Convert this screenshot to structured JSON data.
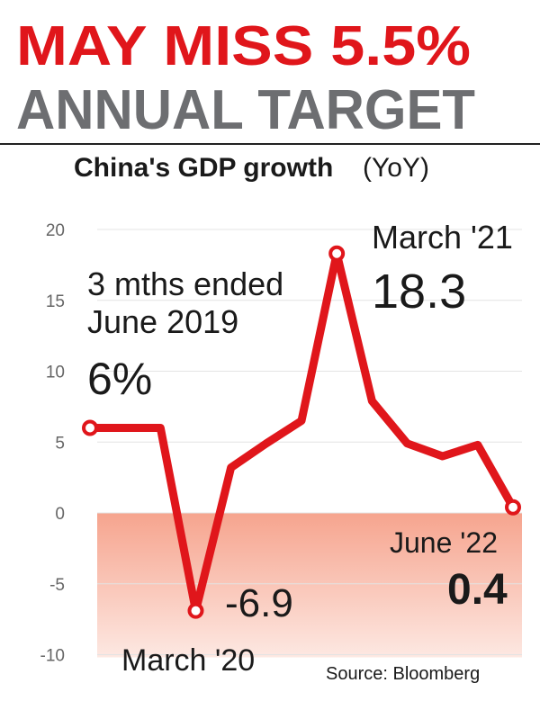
{
  "chart_data": {
    "type": "line",
    "title": [
      "MAY MISS 5.5%",
      "ANNUAL TARGET"
    ],
    "subtitle": "China's GDP growth",
    "subtitle_unit": "(YoY)",
    "source": "Source: Bloomberg",
    "categories": [
      "3 mths ended June 2019",
      null,
      null,
      "March '20",
      null,
      null,
      null,
      "March '21",
      null,
      null,
      null,
      null,
      "June '22"
    ],
    "series": [
      {
        "color": "#e0161b",
        "values": [
          6,
          6,
          6,
          -6.9,
          3.2,
          4.9,
          6.5,
          18.3,
          7.9,
          4.9,
          4,
          4.8,
          0.4
        ],
        "value_labels": [
          "6%",
          null,
          null,
          "-6.9",
          null,
          null,
          null,
          "18.3",
          null,
          null,
          null,
          null,
          "0.4"
        ]
      }
    ],
    "ylim": [
      -10,
      20
    ],
    "yticks": [
      -10,
      -5,
      0,
      5,
      10,
      15,
      20
    ],
    "grid": true
  }
}
